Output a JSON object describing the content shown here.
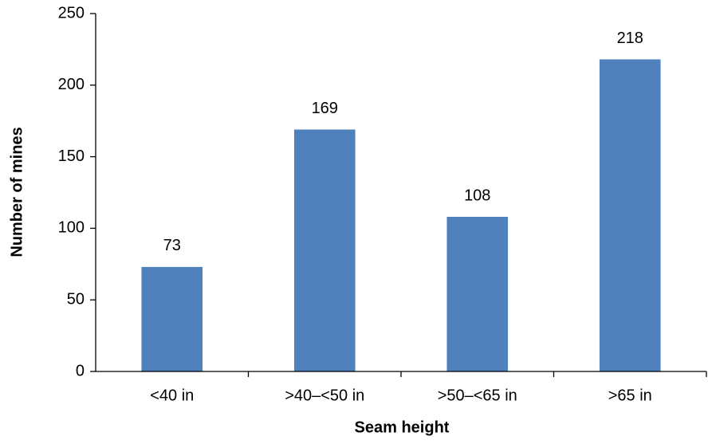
{
  "chart_data": {
    "type": "bar",
    "categories": [
      "<40 in",
      ">40–<50 in",
      ">50–<65 in",
      ">65 in"
    ],
    "values": [
      73,
      169,
      108,
      218
    ],
    "color": "#4f81bd",
    "xlabel": "Seam height",
    "ylabel": "Number of mines",
    "ylim": [
      0,
      250
    ],
    "yticks": [
      0,
      50,
      100,
      150,
      200,
      250
    ],
    "grid": false
  }
}
